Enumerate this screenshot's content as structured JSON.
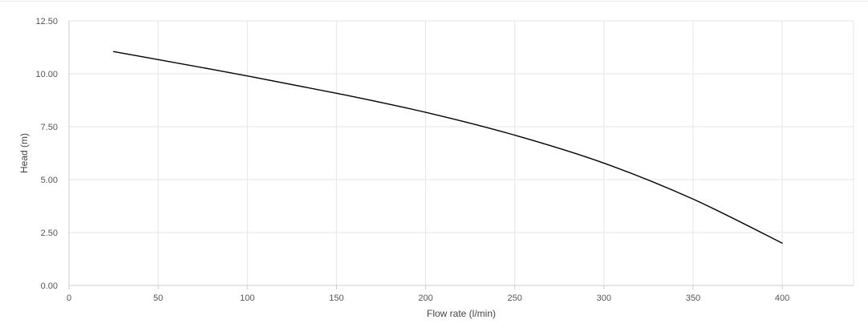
{
  "chart_data": {
    "type": "line",
    "title": "",
    "xlabel": "Flow rate (l/min)",
    "ylabel": "Head (m)",
    "xlim": [
      0,
      440
    ],
    "ylim": [
      0,
      12.5
    ],
    "x_ticks": [
      0,
      50,
      100,
      150,
      200,
      250,
      300,
      350,
      400
    ],
    "x_tick_labels": [
      "0",
      "50",
      "100",
      "150",
      "200",
      "250",
      "300",
      "350",
      "400"
    ],
    "y_ticks": [
      0,
      2.5,
      5,
      7.5,
      10,
      12.5
    ],
    "y_tick_labels": [
      "0.00",
      "2.50",
      "5.00",
      "7.50",
      "10.00",
      "12.50"
    ],
    "grid": true,
    "legend": "none",
    "series": [
      {
        "color": "#000000",
        "x": [
          25,
          50,
          100,
          150,
          200,
          250,
          300,
          350,
          400
        ],
        "y": [
          11.05,
          10.67,
          9.9,
          9.08,
          8.18,
          7.1,
          5.78,
          4.08,
          2.0
        ]
      }
    ]
  }
}
